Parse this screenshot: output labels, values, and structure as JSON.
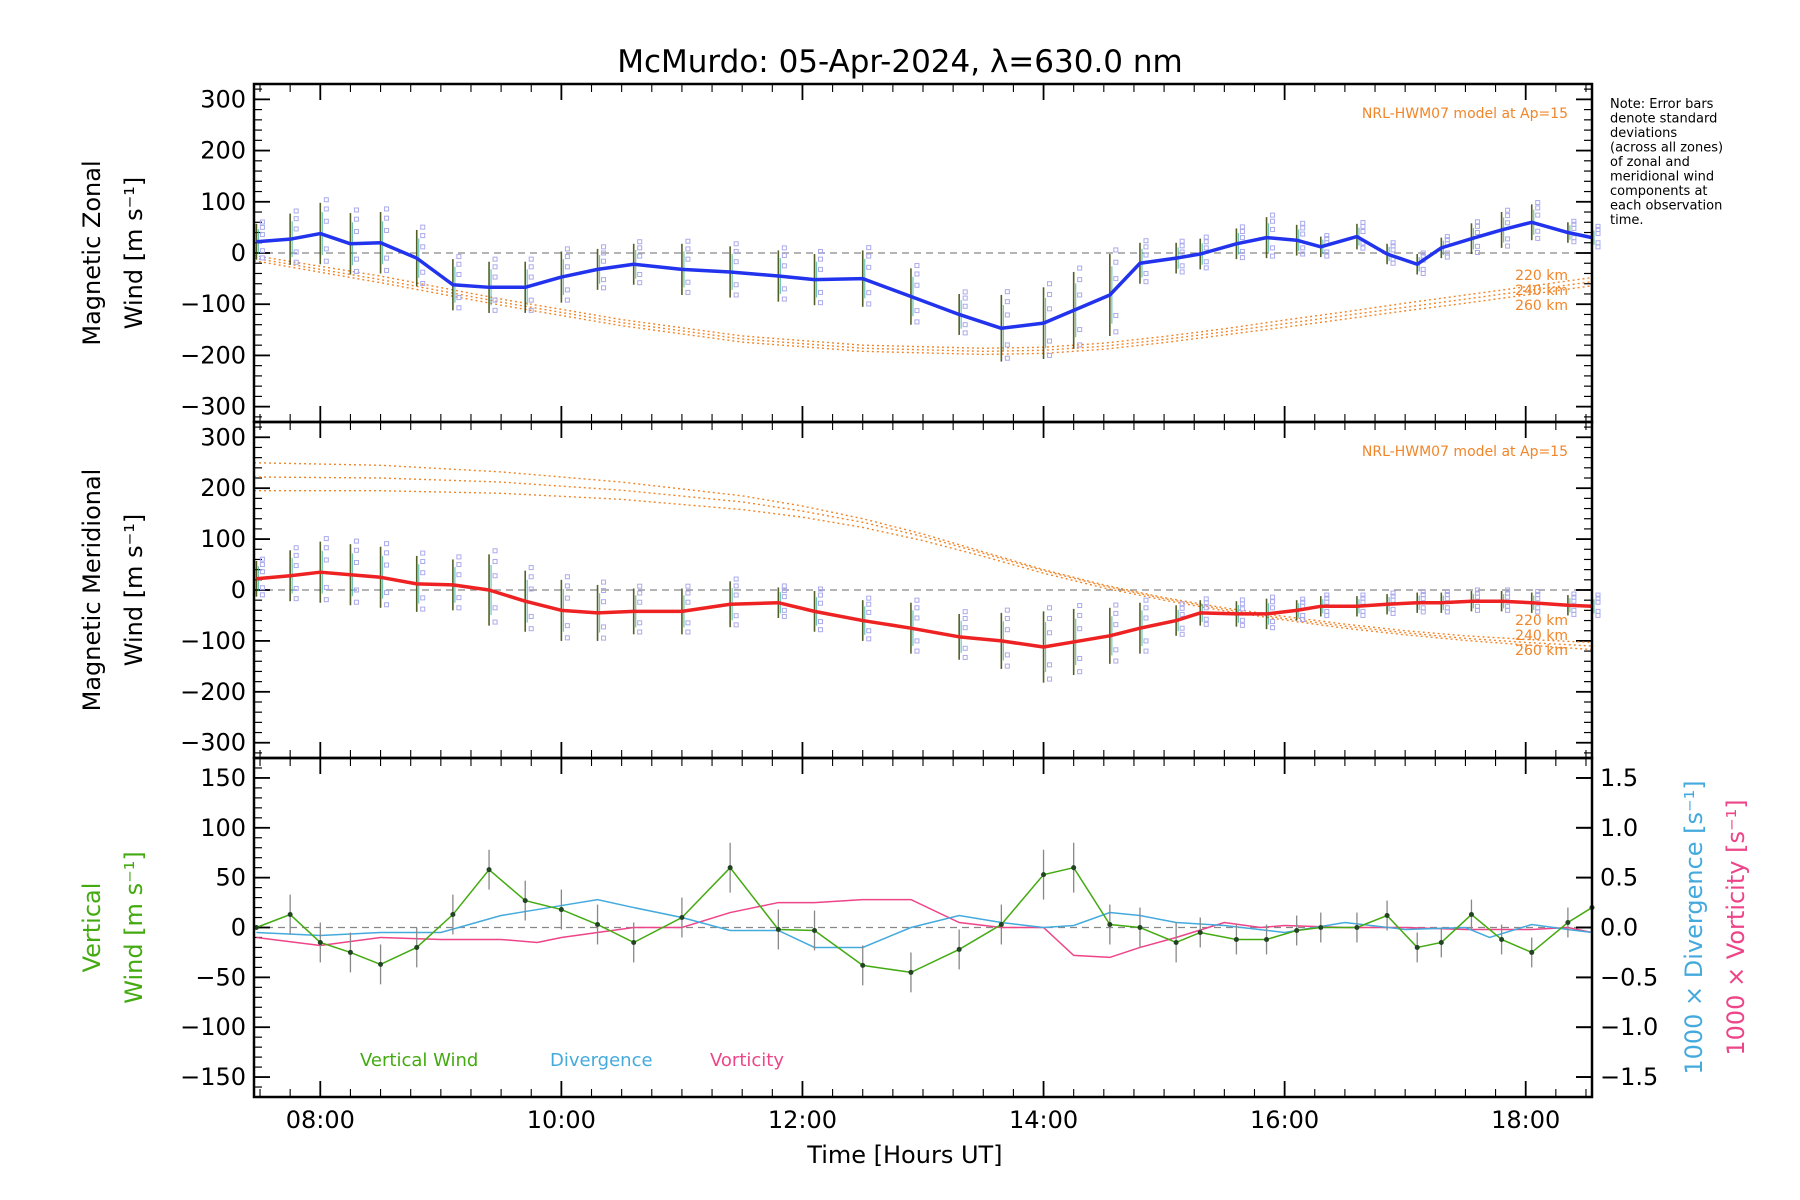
{
  "title": "McMurdo: 05-Apr-2024, λ=630.0 nm",
  "note_lines": [
    "Note: Error bars",
    "denote standard",
    "deviations",
    "(across all zones)",
    "of zonal and",
    "meridional wind",
    "components at",
    "each observation",
    "time."
  ],
  "colors": {
    "zonal": "#2233ee",
    "meridional": "#ee2222",
    "vertical": "#44aa11",
    "divergence": "#44aadd",
    "vorticity": "#ee4488",
    "model": "#f0862a",
    "zone_points": "#aaaaee",
    "zero_line": "#888888"
  },
  "chart_data": [
    {
      "type": "line",
      "name": "zonal",
      "ylabel_lines": [
        "Magnetic Zonal",
        "Wind [m s⁻¹]"
      ],
      "ylim": [
        -330,
        330
      ],
      "yticks": [
        300,
        200,
        100,
        0,
        -100,
        -200,
        -300
      ],
      "xlim": [
        7.45,
        18.55
      ],
      "model_label": "NRL-HWM07 model at Ap=15",
      "model_altitudes": [
        "220 km",
        "240 km",
        "260 km"
      ],
      "x": [
        7.47,
        7.75,
        8.0,
        8.25,
        8.5,
        8.8,
        9.1,
        9.4,
        9.7,
        10.0,
        10.3,
        10.6,
        11.0,
        11.4,
        11.8,
        12.1,
        12.5,
        12.9,
        13.3,
        13.65,
        14.0,
        14.25,
        14.55,
        14.8,
        15.1,
        15.3,
        15.6,
        15.85,
        16.1,
        16.3,
        16.6,
        16.85,
        17.1,
        17.3,
        17.55,
        17.8,
        18.05,
        18.35,
        18.55
      ],
      "y": [
        22,
        27,
        38,
        18,
        20,
        -10,
        -62,
        -67,
        -67,
        -47,
        -32,
        -22,
        -32,
        -37,
        -45,
        -52,
        -50,
        -85,
        -120,
        -147,
        -137,
        -112,
        -82,
        -20,
        -10,
        -2,
        18,
        30,
        25,
        12,
        32,
        -2,
        -22,
        10,
        28,
        45,
        60,
        40,
        30
      ],
      "err": [
        35,
        50,
        60,
        60,
        60,
        55,
        50,
        50,
        50,
        50,
        40,
        40,
        50,
        50,
        50,
        50,
        55,
        55,
        40,
        65,
        70,
        75,
        80,
        40,
        30,
        30,
        30,
        40,
        30,
        20,
        25,
        20,
        20,
        20,
        30,
        35,
        35,
        20,
        20
      ],
      "model_series": [
        {
          "x": [
            7.45,
            8.5,
            9.5,
            10.5,
            11.5,
            12.5,
            13.5,
            14.0,
            14.5,
            15.0,
            15.5,
            16.0,
            16.5,
            17.0,
            17.5,
            18.0,
            18.55
          ],
          "y": [
            -5,
            -45,
            -90,
            -130,
            -162,
            -180,
            -186,
            -184,
            -176,
            -163,
            -148,
            -131,
            -115,
            -98,
            -82,
            -66,
            -48
          ]
        },
        {
          "x": [
            7.45,
            8.5,
            9.5,
            10.5,
            11.5,
            12.5,
            13.5,
            14.0,
            14.5,
            15.0,
            15.5,
            16.0,
            16.5,
            17.0,
            17.5,
            18.0,
            18.55
          ],
          "y": [
            -10,
            -52,
            -96,
            -136,
            -168,
            -186,
            -192,
            -190,
            -182,
            -169,
            -154,
            -138,
            -122,
            -106,
            -90,
            -74,
            -56
          ]
        },
        {
          "x": [
            7.45,
            8.5,
            9.5,
            10.5,
            11.5,
            12.5,
            13.5,
            14.0,
            14.5,
            15.0,
            15.5,
            16.0,
            16.5,
            17.0,
            17.5,
            18.0,
            18.55
          ],
          "y": [
            -15,
            -58,
            -102,
            -142,
            -174,
            -192,
            -198,
            -196,
            -188,
            -175,
            -160,
            -145,
            -129,
            -113,
            -98,
            -82,
            -64
          ]
        }
      ]
    },
    {
      "type": "line",
      "name": "meridional",
      "ylabel_lines": [
        "Magnetic Meridional",
        "Wind [m s⁻¹]"
      ],
      "ylim": [
        -330,
        330
      ],
      "yticks": [
        300,
        200,
        100,
        0,
        -100,
        -200,
        -300
      ],
      "xlim": [
        7.45,
        18.55
      ],
      "model_label": "NRL-HWM07 model at Ap=15",
      "model_altitudes": [
        "220 km",
        "240 km",
        "260 km"
      ],
      "x": [
        7.47,
        7.75,
        8.0,
        8.25,
        8.5,
        8.8,
        9.1,
        9.4,
        9.7,
        10.0,
        10.3,
        10.6,
        11.0,
        11.4,
        11.8,
        12.1,
        12.5,
        12.9,
        13.3,
        13.65,
        14.0,
        14.25,
        14.55,
        14.8,
        15.1,
        15.3,
        15.6,
        15.85,
        16.1,
        16.3,
        16.6,
        16.85,
        17.1,
        17.3,
        17.55,
        17.8,
        18.05,
        18.35,
        18.55
      ],
      "y": [
        22,
        28,
        35,
        30,
        25,
        12,
        10,
        0,
        -22,
        -40,
        -45,
        -42,
        -42,
        -28,
        -25,
        -42,
        -60,
        -75,
        -92,
        -100,
        -112,
        -102,
        -90,
        -75,
        -60,
        -45,
        -47,
        -47,
        -40,
        -32,
        -32,
        -28,
        -25,
        -25,
        -22,
        -22,
        -25,
        -30,
        -32
      ],
      "err": [
        35,
        50,
        60,
        60,
        60,
        55,
        50,
        70,
        60,
        60,
        55,
        45,
        45,
        45,
        30,
        40,
        40,
        50,
        45,
        55,
        70,
        65,
        55,
        50,
        30,
        25,
        25,
        30,
        20,
        20,
        20,
        20,
        20,
        20,
        20,
        20,
        20,
        20,
        20
      ],
      "model_series": [
        {
          "x": [
            7.45,
            8.5,
            9.5,
            10.5,
            11.5,
            12.0,
            12.5,
            13.0,
            13.5,
            14.0,
            14.5,
            15.0,
            15.5,
            16.0,
            16.5,
            17.0,
            17.5,
            18.0,
            18.55
          ],
          "y": [
            250,
            245,
            232,
            212,
            185,
            165,
            140,
            110,
            75,
            40,
            10,
            -15,
            -35,
            -52,
            -67,
            -80,
            -90,
            -97,
            -103
          ]
        },
        {
          "x": [
            7.45,
            8.5,
            9.5,
            10.5,
            11.5,
            12.0,
            12.5,
            13.0,
            13.5,
            14.0,
            14.5,
            15.0,
            15.5,
            16.0,
            16.5,
            17.0,
            17.5,
            18.0,
            18.55
          ],
          "y": [
            222,
            220,
            212,
            196,
            173,
            155,
            133,
            105,
            72,
            38,
            8,
            -17,
            -38,
            -56,
            -71,
            -84,
            -95,
            -103,
            -110
          ]
        },
        {
          "x": [
            7.45,
            8.5,
            9.5,
            10.5,
            11.5,
            12.0,
            12.5,
            13.0,
            13.5,
            14.0,
            14.5,
            15.0,
            15.5,
            16.0,
            16.5,
            17.0,
            17.5,
            18.0,
            18.55
          ],
          "y": [
            195,
            195,
            190,
            178,
            158,
            143,
            123,
            97,
            66,
            33,
            4,
            -20,
            -41,
            -59,
            -75,
            -88,
            -99,
            -108,
            -117
          ]
        }
      ]
    },
    {
      "type": "line",
      "name": "vertical",
      "ylabel_lines": [
        "Vertical",
        "Wind [m s⁻¹]"
      ],
      "y2label_lines": [
        "1000 × Divergence [s⁻¹]",
        "1000 × Vorticity [s⁻¹]"
      ],
      "ylim": [
        -170,
        170
      ],
      "yticks": [
        150,
        100,
        50,
        0,
        -50,
        -100,
        -150
      ],
      "y2lim": [
        -1.7,
        1.7
      ],
      "y2ticks": [
        "1.5",
        "1.0",
        "0.5",
        "0.0",
        "−0.5",
        "−1.0",
        "−1.5"
      ],
      "y2tick_values": [
        1.5,
        1.0,
        0.5,
        0.0,
        -0.5,
        -1.0,
        -1.5
      ],
      "xlim": [
        7.45,
        18.55
      ],
      "xticks": [
        "08:00",
        "10:00",
        "12:00",
        "14:00",
        "16:00",
        "18:00"
      ],
      "xtick_values": [
        8,
        10,
        12,
        14,
        16,
        18
      ],
      "xlabel": "Time [Hours UT]",
      "legend": [
        "Vertical Wind",
        "Divergence",
        "Vorticity"
      ],
      "series": [
        {
          "name": "Vertical Wind",
          "x": [
            7.47,
            7.75,
            8.0,
            8.25,
            8.5,
            8.8,
            9.1,
            9.4,
            9.7,
            10.0,
            10.3,
            10.6,
            11.0,
            11.4,
            11.8,
            12.1,
            12.5,
            12.9,
            13.3,
            13.65,
            14.0,
            14.25,
            14.55,
            14.8,
            15.1,
            15.3,
            15.6,
            15.85,
            16.1,
            16.3,
            16.6,
            16.85,
            17.1,
            17.3,
            17.55,
            17.8,
            18.05,
            18.35,
            18.55
          ],
          "y": [
            0,
            13,
            -15,
            -25,
            -37,
            -20,
            13,
            58,
            27,
            18,
            3,
            -15,
            10,
            60,
            -2,
            -3,
            -38,
            -45,
            -22,
            3,
            53,
            60,
            3,
            0,
            -15,
            -5,
            -12,
            -12,
            -3,
            0,
            0,
            12,
            -20,
            -15,
            13,
            -12,
            -25,
            5,
            20
          ],
          "err": [
            0,
            20,
            20,
            20,
            20,
            20,
            20,
            20,
            20,
            20,
            20,
            20,
            20,
            25,
            20,
            20,
            20,
            20,
            20,
            20,
            25,
            25,
            20,
            20,
            20,
            15,
            15,
            15,
            15,
            15,
            15,
            15,
            15,
            15,
            15,
            15,
            15,
            15,
            15
          ]
        },
        {
          "name": "Divergence",
          "x": [
            7.47,
            8.0,
            8.5,
            9.0,
            9.5,
            9.8,
            10.0,
            10.3,
            10.6,
            11.0,
            11.4,
            11.8,
            12.1,
            12.5,
            12.9,
            13.3,
            13.65,
            14.0,
            14.25,
            14.55,
            14.8,
            15.1,
            15.5,
            16.0,
            16.5,
            17.0,
            17.5,
            17.7,
            18.05,
            18.35,
            18.55
          ],
          "y": [
            -0.05,
            -0.08,
            -0.05,
            -0.05,
            0.12,
            0.18,
            0.22,
            0.28,
            0.2,
            0.1,
            -0.03,
            -0.03,
            -0.2,
            -0.2,
            0.0,
            0.12,
            0.05,
            0.0,
            0.02,
            0.15,
            0.12,
            0.05,
            0.02,
            -0.05,
            0.05,
            -0.02,
            0.0,
            -0.1,
            0.03,
            -0.02,
            -0.05
          ]
        },
        {
          "name": "Vorticity",
          "x": [
            7.47,
            8.0,
            8.5,
            9.0,
            9.5,
            9.8,
            10.0,
            10.3,
            10.6,
            11.0,
            11.4,
            11.6,
            11.8,
            12.1,
            12.5,
            12.9,
            13.3,
            13.65,
            14.0,
            14.25,
            14.55,
            14.8,
            15.1,
            15.5,
            15.8,
            16.0,
            16.5,
            17.0,
            17.5,
            18.05,
            18.35,
            18.55
          ],
          "y": [
            -0.1,
            -0.18,
            -0.1,
            -0.12,
            -0.12,
            -0.15,
            -0.1,
            -0.05,
            0.0,
            0.0,
            0.15,
            0.2,
            0.25,
            0.25,
            0.28,
            0.28,
            0.05,
            0.0,
            0.0,
            -0.28,
            -0.3,
            -0.2,
            -0.1,
            0.05,
            0.0,
            0.02,
            0.0,
            0.0,
            -0.02,
            -0.02,
            0.0,
            -0.05
          ]
        }
      ]
    }
  ]
}
